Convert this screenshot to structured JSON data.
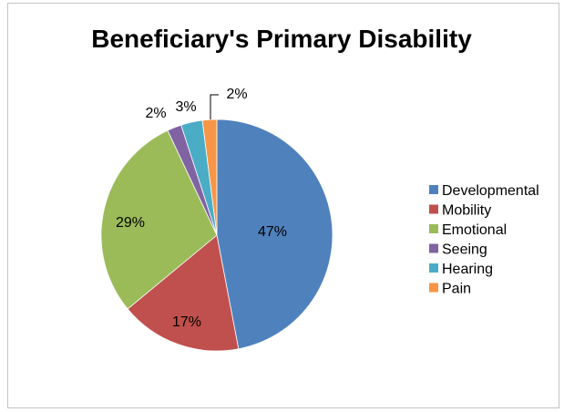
{
  "chart_data": {
    "type": "pie",
    "title": "Beneficiary's Primary Disability",
    "categories": [
      "Developmental",
      "Mobility",
      "Emotional",
      "Seeing",
      "Hearing",
      "Pain"
    ],
    "values": [
      47,
      17,
      29,
      2,
      3,
      2
    ],
    "labels": [
      "47%",
      "17%",
      "29%",
      "2%",
      "3%",
      "2%"
    ],
    "colors": [
      "#4f81bd",
      "#c0504d",
      "#9bbb59",
      "#8064a2",
      "#4bacc6",
      "#f79646"
    ],
    "legend": "right",
    "start_angle_deg": 0,
    "direction": "clockwise"
  }
}
